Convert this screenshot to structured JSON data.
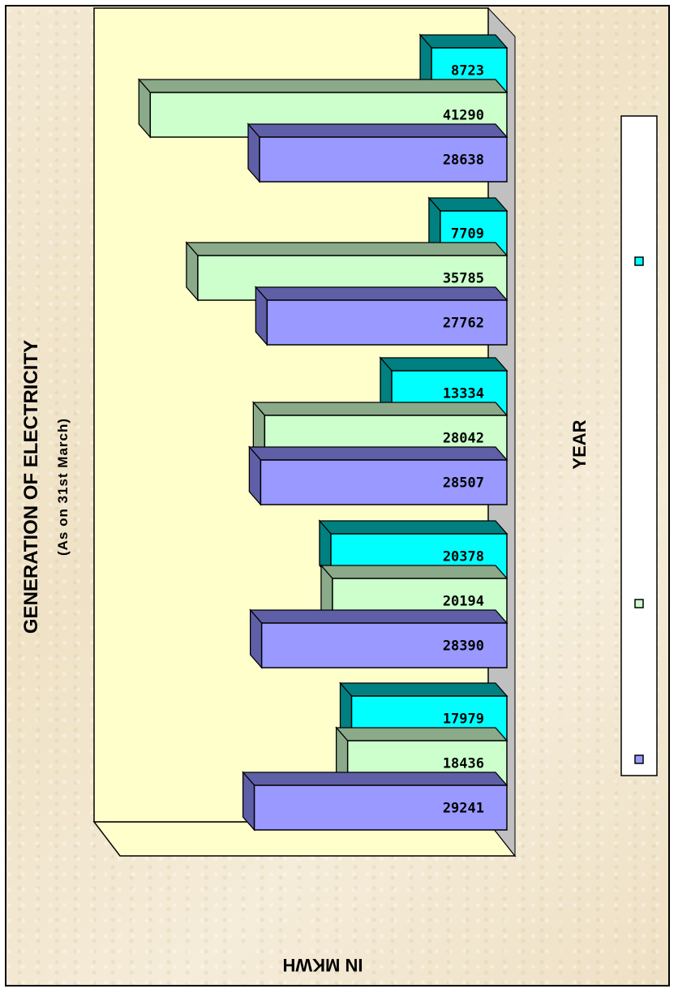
{
  "chart_data": {
    "type": "bar",
    "orientation": "horizontal-3d",
    "title": "GENERATION OF ELECTRICITY",
    "subtitle": "(As on 31st March)",
    "xlabel": "YEAR",
    "ylabel": "IN MKWH",
    "categories": [
      "",
      "",
      "",
      "",
      ""
    ],
    "series": [
      {
        "name": "",
        "color": "#9999ff",
        "dark": "#5f5fa8",
        "values": [
          29241,
          28390,
          28507,
          27762,
          28638
        ]
      },
      {
        "name": "",
        "color": "#ccffcc",
        "dark": "#8aaa8a",
        "values": [
          18436,
          20194,
          28042,
          35785,
          41290
        ]
      },
      {
        "name": "",
        "color": "#00ffff",
        "dark": "#008080",
        "values": [
          17979,
          20378,
          13334,
          7709,
          8723
        ]
      }
    ],
    "value_labels": [
      [
        "29241",
        "28390",
        "28507",
        "27762",
        "28638"
      ],
      [
        "18436",
        "20194",
        "28042",
        "35785",
        "41290"
      ],
      [
        "17979",
        "20378",
        "13334",
        "7709",
        "8723"
      ]
    ],
    "value_axis_ticks": [
      "",
      "",
      "",
      "",
      "",
      "",
      "",
      "",
      "",
      ""
    ],
    "vlim": [
      0,
      45000
    ],
    "grid": false,
    "legend": "right",
    "plot_background": "#ffffcc"
  }
}
